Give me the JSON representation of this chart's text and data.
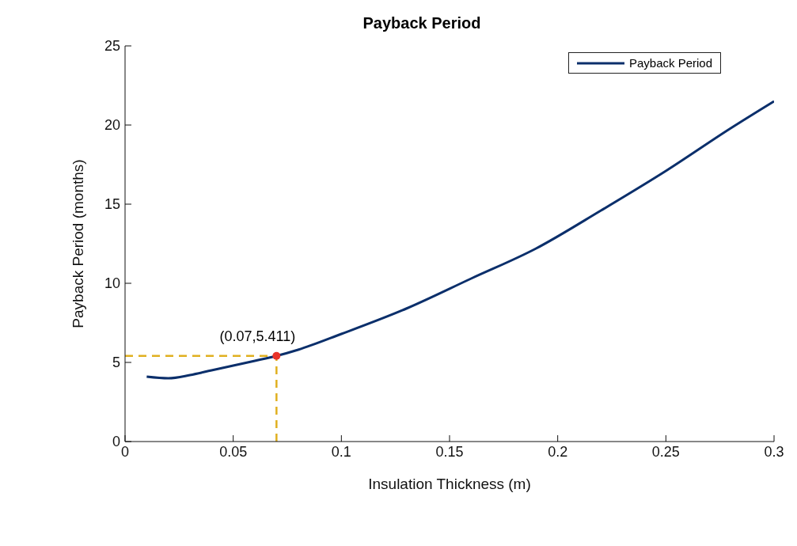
{
  "chart_data": {
    "type": "line",
    "title": "Payback Period",
    "xlabel": "Insulation Thickness (m)",
    "ylabel": "Payback Period (months)",
    "xlim": [
      0,
      0.3
    ],
    "xticks": [
      0,
      0.05,
      0.1,
      0.15,
      0.2,
      0.25,
      0.3
    ],
    "ylim": [
      0,
      25
    ],
    "yticks": [
      0,
      5,
      10,
      15,
      20,
      25
    ],
    "series": [
      {
        "name": "Payback Period",
        "color": "#0b2f6b",
        "x": [
          0.01,
          0.02,
          0.03,
          0.04,
          0.05,
          0.06,
          0.07,
          0.08,
          0.1,
          0.13,
          0.16,
          0.19,
          0.22,
          0.25,
          0.28,
          0.3
        ],
        "values": [
          4.1,
          4.0,
          4.2,
          4.5,
          4.8,
          5.1,
          5.411,
          5.8,
          6.8,
          8.4,
          10.3,
          12.2,
          14.6,
          17.1,
          19.8,
          21.5
        ]
      },
      {
        "type": "scatter",
        "color": "#e8332a",
        "x": [
          0.07
        ],
        "values": [
          5.411
        ],
        "marker": "circle"
      }
    ],
    "annotations": [
      {
        "text": "(0.07,5.411)",
        "x": 0.07,
        "y": 5.411
      }
    ],
    "ref_lines": [
      {
        "axis": "x",
        "value": 0.07,
        "color": "#e0b020",
        "line_style": "dashed"
      },
      {
        "axis": "y",
        "value": 5.411,
        "color": "#e0b020",
        "line_style": "dashed"
      }
    ],
    "grid": false,
    "legend": "top right",
    "line_style": "solid",
    "marker": "none"
  }
}
